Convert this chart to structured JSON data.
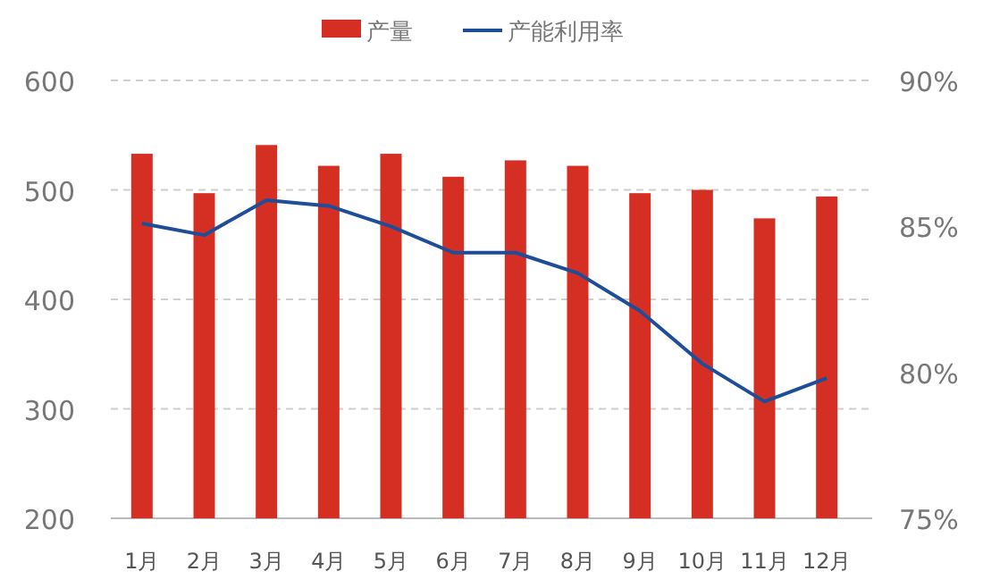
{
  "chart_data": {
    "type": "bar",
    "categories": [
      "1月",
      "2月",
      "3月",
      "4月",
      "5月",
      "6月",
      "7月",
      "8月",
      "9月",
      "10月",
      "11月",
      "12月"
    ],
    "series": [
      {
        "name": "产量",
        "color": "#d52f23",
        "values": [
          533,
          497,
          541,
          522,
          533,
          512,
          527,
          522,
          497,
          500,
          474,
          494
        ]
      },
      {
        "name": "产能利用率",
        "type": "line",
        "axis": "y2",
        "color": "#1f4e99",
        "values": [
          85.1,
          84.7,
          85.9,
          85.7,
          85.0,
          84.1,
          84.1,
          83.4,
          82.1,
          80.3,
          79.0,
          79.8
        ]
      }
    ],
    "ylim": [
      200,
      600
    ],
    "yticks": [
      200,
      300,
      400,
      500,
      600
    ],
    "y2lim": [
      75,
      90
    ],
    "y2ticks": [
      {
        "value": 75,
        "label": "75%"
      },
      {
        "value": 80,
        "label": "80%"
      },
      {
        "value": 85,
        "label": "85%"
      },
      {
        "value": 90,
        "label": "90%"
      }
    ],
    "grid": "y",
    "legend": "top"
  }
}
